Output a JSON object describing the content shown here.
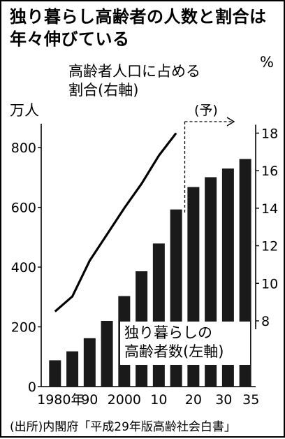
{
  "headline": {
    "line1": "独り暮らし高齢者の人数と割合は",
    "line2": "年々伸びている"
  },
  "source": "(出所)内閣府「平成29年版高齢社会白書」",
  "colors": {
    "bar": "#1a1a1a",
    "ink": "#000000",
    "background": "#ffffff"
  },
  "chart_data": {
    "type": "bar",
    "x_tick_labels": [
      "1980年",
      "90",
      "2000",
      "10",
      "20",
      "30",
      "35"
    ],
    "categories": [
      "1980年",
      "1985",
      "90",
      "1995",
      "2000",
      "2005",
      "10",
      "2015",
      "20",
      "2025",
      "30",
      "35"
    ],
    "forecast_label": "(予)",
    "forecast_start": "2020",
    "left_axis": {
      "unit": "万人",
      "ticks": [
        0,
        200,
        400,
        600,
        800
      ],
      "ylim": [
        0,
        880
      ]
    },
    "right_axis": {
      "unit": "%",
      "ticks": [
        8,
        10,
        12,
        14,
        16,
        18
      ],
      "ylim": [
        4.5,
        18.5
      ]
    },
    "series": [
      {
        "name": "独り暮らしの高齢者数(左軸)",
        "name_lines": [
          "独り暮らしの",
          "高齢者数(左軸)"
        ],
        "type": "bar",
        "axis": "left",
        "x": [
          "1980",
          "1985",
          "1990",
          "1995",
          "2000",
          "2005",
          "2010",
          "2015",
          "2020",
          "2025",
          "2030",
          "2035"
        ],
        "values": [
          88,
          118,
          162,
          220,
          303,
          386,
          479,
          593,
          668,
          701,
          730,
          762
        ]
      },
      {
        "name": "高齢者人口に占める割合(右軸)",
        "name_lines": [
          "高齢者人口に占める",
          "割合(右軸)"
        ],
        "type": "line",
        "axis": "right",
        "x": [
          "1980",
          "1985",
          "1990",
          "1995",
          "2000",
          "2005",
          "2010",
          "2015"
        ],
        "values": [
          8.5,
          9.3,
          11.2,
          12.6,
          14.0,
          15.3,
          16.8,
          18.0
        ]
      }
    ]
  }
}
